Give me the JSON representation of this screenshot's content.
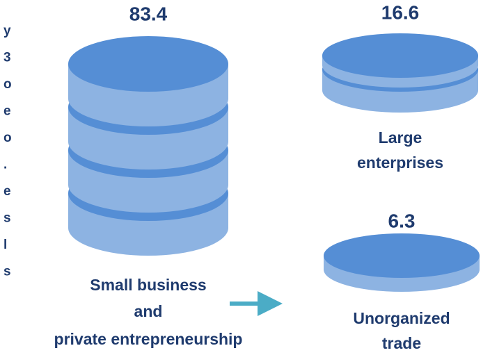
{
  "edge_fragments": [
    "y",
    "3",
    "o",
    "e",
    "o",
    ".",
    "e",
    "s",
    "l",
    "s"
  ],
  "items": [
    {
      "value": 83.4,
      "label_lines": [
        "Small business",
        "and",
        "private entrepreneurship"
      ]
    },
    {
      "value": 16.6,
      "label_lines": [
        "Large",
        "enterprises"
      ]
    },
    {
      "value": 6.3,
      "label_lines": [
        "Unorganized",
        "trade"
      ]
    }
  ]
}
